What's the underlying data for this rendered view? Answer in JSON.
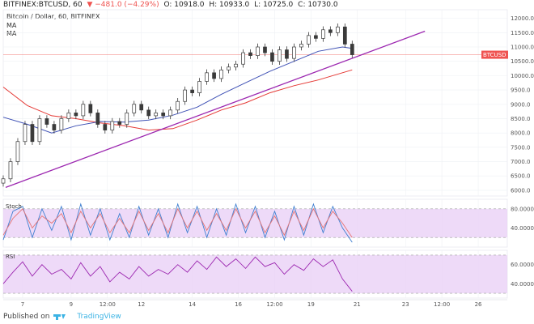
{
  "header": {
    "symbol": "BITFINEX:BTCUSD, 60",
    "change": "▼ −481.0 (−4.29%)",
    "open": "O: 10918.0",
    "high": "H: 10933.0",
    "low": "L: 10725.0",
    "close": "C: 10730.0"
  },
  "legend": {
    "title": "Bitcoin / Dollar, 60, BITFINEX",
    "ma1": "MA",
    "ma2": "MA"
  },
  "footer": {
    "published_on": "Published on",
    "brand": "TradingView"
  },
  "colors": {
    "up": "#26a69a",
    "down": "#ef5350",
    "candle": "#3a3a3a",
    "ma_fast": "#3f51b5",
    "ma_slow": "#e53935",
    "trendline": "#9c27b0",
    "stoch_k": "#3f7fd0",
    "stoch_d": "#e57373",
    "rsi": "#9c27b0",
    "band_fill": "#ead1f6"
  },
  "chart_data": [
    {
      "type": "candlestick",
      "pane": "price",
      "last_price_label": "BTCUSD",
      "y_ticks": [
        "12000.0",
        "11500.0",
        "11000.0",
        "10500.0",
        "10000.0",
        "9500.0",
        "9000.0",
        "8500.0",
        "8000.0",
        "7500.0",
        "7000.0",
        "6500.0",
        "6000.0"
      ],
      "ylim": [
        5800,
        12300
      ],
      "x_ticks": [
        "7",
        "9",
        "12:00",
        "12",
        "14",
        "16",
        "12:00",
        "19",
        "21",
        "23",
        "12:00",
        "26"
      ],
      "x_tick_positions": [
        0.8,
        2.8,
        4.3,
        5.7,
        7.8,
        9.7,
        11.2,
        12.7,
        14.6,
        16.6,
        18.1,
        19.6
      ],
      "xlim": [
        0,
        20.8
      ],
      "series": [
        {
          "name": "BTCUSD",
          "kind": "close",
          "x": [
            0.0,
            0.3,
            0.6,
            0.9,
            1.2,
            1.5,
            1.8,
            2.1,
            2.4,
            2.7,
            3.0,
            3.3,
            3.6,
            3.9,
            4.2,
            4.5,
            4.8,
            5.1,
            5.4,
            5.7,
            6.0,
            6.3,
            6.6,
            6.9,
            7.2,
            7.5,
            7.8,
            8.1,
            8.4,
            8.7,
            9.0,
            9.3,
            9.6,
            9.9,
            10.2,
            10.5,
            10.8,
            11.1,
            11.4,
            11.7,
            12.0,
            12.3,
            12.6,
            12.9,
            13.2,
            13.5,
            13.8,
            14.1,
            14.4
          ],
          "values": [
            6400,
            7000,
            7700,
            8300,
            7700,
            8500,
            8300,
            8100,
            8500,
            8700,
            8600,
            9000,
            8700,
            8300,
            8100,
            8400,
            8300,
            8700,
            9000,
            8800,
            8600,
            8700,
            8600,
            8800,
            9100,
            9500,
            9400,
            9800,
            10100,
            9900,
            10200,
            10300,
            10400,
            10800,
            10700,
            11000,
            10800,
            10500,
            10900,
            10600,
            11000,
            11100,
            11400,
            11300,
            11600,
            11500,
            11700,
            11100,
            10730
          ]
        },
        {
          "name": "MA",
          "kind": "ma_fast",
          "x": [
            0.0,
            1.0,
            2.0,
            3.0,
            4.0,
            5.0,
            6.0,
            7.0,
            8.0,
            9.0,
            10.0,
            11.0,
            12.0,
            13.0,
            14.0,
            14.4
          ],
          "values": [
            8550,
            8300,
            8000,
            8250,
            8400,
            8380,
            8450,
            8620,
            8900,
            9350,
            9750,
            10150,
            10500,
            10850,
            11000,
            10950
          ]
        },
        {
          "name": "MA",
          "kind": "ma_slow",
          "x": [
            0.0,
            1.0,
            2.0,
            3.0,
            4.0,
            5.0,
            6.0,
            7.0,
            8.0,
            9.0,
            10.0,
            11.0,
            12.0,
            13.0,
            14.0,
            14.4
          ],
          "values": [
            9600,
            8950,
            8600,
            8500,
            8350,
            8250,
            8100,
            8150,
            8450,
            8800,
            9050,
            9400,
            9650,
            9850,
            10100,
            10200
          ]
        },
        {
          "name": "trendline",
          "kind": "trendline",
          "x": [
            0.1,
            17.4
          ],
          "values": [
            6100,
            11550
          ]
        }
      ]
    },
    {
      "type": "line",
      "pane": "stoch",
      "title": "Stoch",
      "y_ticks": [
        "80.0000",
        "40.0000"
      ],
      "y_tick_values": [
        80,
        40
      ],
      "band": [
        20,
        80
      ],
      "ylim": [
        0,
        100
      ],
      "series": [
        {
          "name": "Stoch %K",
          "kind": "stoch_k",
          "x": [
            0.0,
            0.4,
            0.8,
            1.2,
            1.6,
            2.0,
            2.4,
            2.8,
            3.2,
            3.6,
            4.0,
            4.4,
            4.8,
            5.2,
            5.6,
            6.0,
            6.4,
            6.8,
            7.2,
            7.6,
            8.0,
            8.4,
            8.8,
            9.2,
            9.6,
            10.0,
            10.4,
            10.8,
            11.2,
            11.6,
            12.0,
            12.4,
            12.8,
            13.2,
            13.6,
            14.0,
            14.4
          ],
          "values": [
            15,
            75,
            85,
            20,
            80,
            35,
            85,
            15,
            90,
            25,
            80,
            15,
            70,
            20,
            85,
            25,
            80,
            20,
            90,
            30,
            85,
            20,
            80,
            25,
            90,
            30,
            85,
            20,
            75,
            15,
            85,
            25,
            90,
            30,
            85,
            40,
            10
          ]
        },
        {
          "name": "Stoch %D",
          "kind": "stoch_d",
          "x": [
            0.0,
            0.4,
            0.8,
            1.2,
            1.6,
            2.0,
            2.4,
            2.8,
            3.2,
            3.6,
            4.0,
            4.4,
            4.8,
            5.2,
            5.6,
            6.0,
            6.4,
            6.8,
            7.2,
            7.6,
            8.0,
            8.4,
            8.8,
            9.2,
            9.6,
            10.0,
            10.4,
            10.8,
            11.2,
            11.6,
            12.0,
            12.4,
            12.8,
            13.2,
            13.6,
            14.0,
            14.4
          ],
          "values": [
            25,
            60,
            80,
            40,
            65,
            50,
            70,
            30,
            75,
            40,
            70,
            30,
            60,
            30,
            75,
            35,
            70,
            30,
            80,
            40,
            75,
            35,
            70,
            35,
            80,
            40,
            75,
            30,
            65,
            25,
            75,
            35,
            80,
            40,
            75,
            50,
            20
          ]
        }
      ]
    },
    {
      "type": "line",
      "pane": "rsi",
      "title": "RSI",
      "y_ticks": [
        "60.0000",
        "40.0000"
      ],
      "y_tick_values": [
        60,
        40
      ],
      "band": [
        30,
        70
      ],
      "ylim": [
        25,
        75
      ],
      "series": [
        {
          "name": "RSI",
          "kind": "rsi",
          "x": [
            0.0,
            0.4,
            0.8,
            1.2,
            1.6,
            2.0,
            2.4,
            2.8,
            3.2,
            3.6,
            4.0,
            4.4,
            4.8,
            5.2,
            5.6,
            6.0,
            6.4,
            6.8,
            7.2,
            7.6,
            8.0,
            8.4,
            8.8,
            9.2,
            9.6,
            10.0,
            10.4,
            10.8,
            11.2,
            11.6,
            12.0,
            12.4,
            12.8,
            13.2,
            13.6,
            14.0,
            14.4
          ],
          "values": [
            40,
            52,
            63,
            48,
            60,
            50,
            55,
            45,
            62,
            48,
            58,
            42,
            52,
            45,
            58,
            48,
            55,
            50,
            60,
            52,
            64,
            55,
            68,
            58,
            66,
            56,
            68,
            58,
            62,
            50,
            60,
            54,
            66,
            58,
            65,
            45,
            32
          ]
        }
      ]
    }
  ]
}
